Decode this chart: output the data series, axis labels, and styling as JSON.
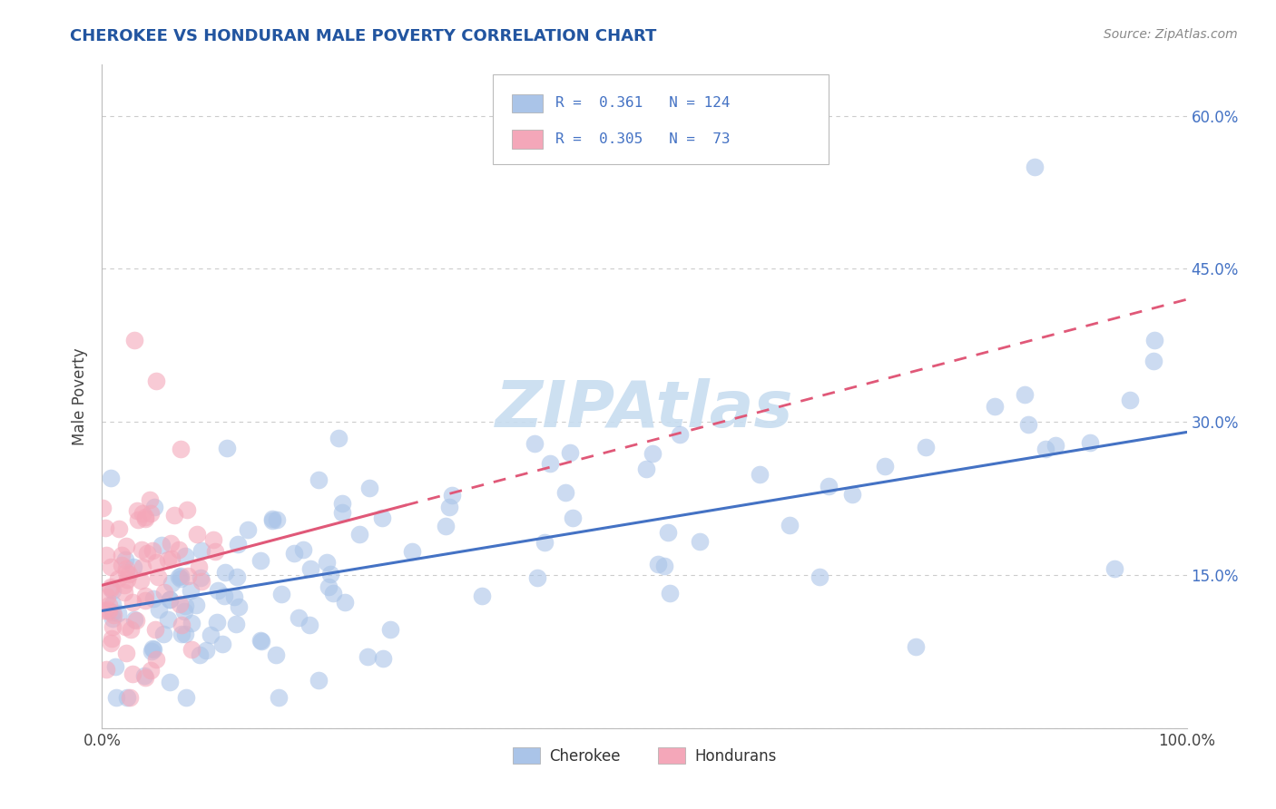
{
  "title": "CHEROKEE VS HONDURAN MALE POVERTY CORRELATION CHART",
  "source_text": "Source: ZipAtlas.com",
  "ylabel": "Male Poverty",
  "xlim": [
    0.0,
    1.0
  ],
  "ylim": [
    0.0,
    0.65
  ],
  "x_ticks": [
    0.0,
    0.25,
    0.5,
    0.75,
    1.0
  ],
  "x_tick_labels": [
    "0.0%",
    "",
    "",
    "",
    "100.0%"
  ],
  "y_ticks": [
    0.0,
    0.15,
    0.3,
    0.45,
    0.6
  ],
  "y_tick_labels_right": [
    "",
    "15.0%",
    "30.0%",
    "45.0%",
    "60.0%"
  ],
  "grid_color": "#cccccc",
  "background_color": "#ffffff",
  "cherokee_color": "#aac4e8",
  "honduran_color": "#f4a7b9",
  "cherokee_line_color": "#4472c4",
  "honduran_line_color": "#e05878",
  "cherokee_R": 0.361,
  "cherokee_N": 124,
  "honduran_R": 0.305,
  "honduran_N": 73,
  "legend_label_cherokee": "Cherokee",
  "legend_label_honduran": "Hondurans",
  "watermark_text": "ZIPAtlas",
  "watermark_color": "#c8ddf0",
  "title_color": "#2255a0",
  "source_color": "#888888",
  "right_tick_color": "#4472c4"
}
